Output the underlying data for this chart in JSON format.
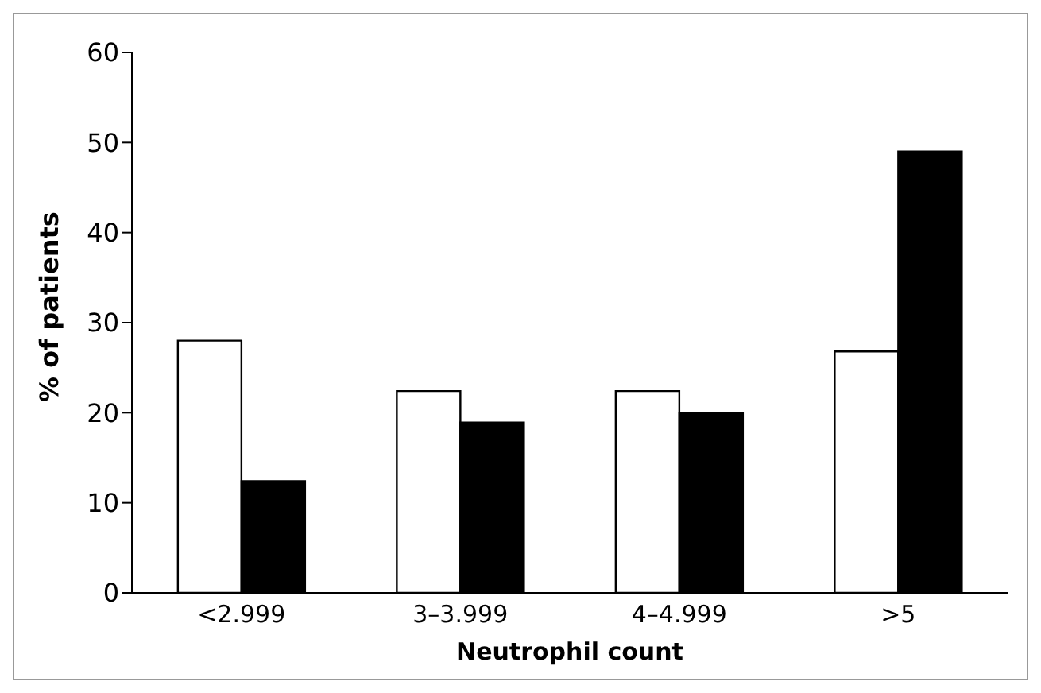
{
  "chart_data": {
    "type": "bar",
    "xlabel": "Neutrophil count",
    "ylabel": "% of patients",
    "categories": [
      "<2.999",
      "3–3.999",
      "4–4.999",
      ">5"
    ],
    "series": [
      {
        "color": "#ffffff",
        "values": [
          28,
          22.4,
          22.4,
          26.8
        ]
      },
      {
        "color": "#000000",
        "values": [
          12.4,
          18.9,
          20,
          49
        ]
      }
    ],
    "ylim": [
      0,
      60
    ],
    "yticks": [
      0,
      10,
      20,
      30,
      40,
      50,
      60
    ],
    "grid": false,
    "legend": false
  }
}
